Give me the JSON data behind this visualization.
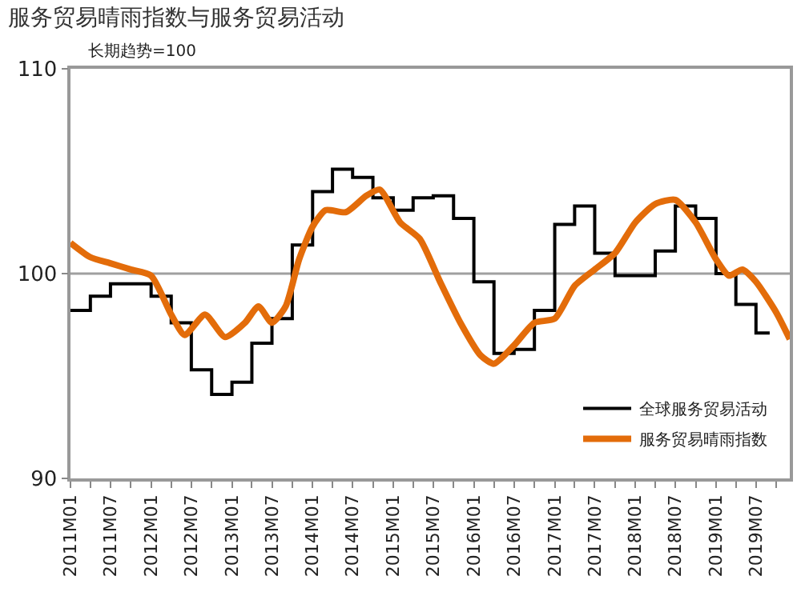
{
  "chart_data": {
    "type": "line",
    "title": "服务贸易晴雨指数与服务贸易活动",
    "subtitle": "长期趋势=100",
    "series": [
      {
        "name": "全球服务贸易活动",
        "type": "step",
        "color": "#000000",
        "x": [
          "2011-01",
          "2011-04",
          "2011-07",
          "2011-10",
          "2012-01",
          "2012-04",
          "2012-07",
          "2012-10",
          "2013-01",
          "2013-04",
          "2013-07",
          "2013-10",
          "2014-01",
          "2014-04",
          "2014-07",
          "2014-10",
          "2015-01",
          "2015-04",
          "2015-07",
          "2015-10",
          "2016-01",
          "2016-04",
          "2016-07",
          "2016-10",
          "2017-01",
          "2017-04",
          "2017-07",
          "2017-10",
          "2018-01",
          "2018-04",
          "2018-07",
          "2018-10",
          "2019-01",
          "2019-04",
          "2019-07",
          "2019-09"
        ],
        "values": [
          98.2,
          98.9,
          99.5,
          99.5,
          98.9,
          97.6,
          95.3,
          94.1,
          94.7,
          96.6,
          97.8,
          101.4,
          104.0,
          105.1,
          104.7,
          103.7,
          103.1,
          103.7,
          103.8,
          102.7,
          99.6,
          96.1,
          96.3,
          98.2,
          102.4,
          103.3,
          101.0,
          99.9,
          99.9,
          101.1,
          103.3,
          102.7,
          100.0,
          98.5,
          97.1,
          97.1
        ]
      },
      {
        "name": "服务贸易晴雨指数",
        "color": "#e36c0a",
        "x": [
          "2011-01",
          "2011-04",
          "2011-07",
          "2011-10",
          "2012-01",
          "2012-04",
          "2012-06",
          "2012-09",
          "2012-12",
          "2013-03",
          "2013-05",
          "2013-07",
          "2013-09",
          "2013-11",
          "2014-01",
          "2014-03",
          "2014-06",
          "2014-09",
          "2014-11",
          "2015-02",
          "2015-05",
          "2015-08",
          "2015-11",
          "2016-02",
          "2016-04",
          "2016-07",
          "2016-10",
          "2017-01",
          "2017-04",
          "2017-07",
          "2017-10",
          "2018-01",
          "2018-04",
          "2018-07",
          "2018-10",
          "2019-01",
          "2019-03",
          "2019-05",
          "2019-07",
          "2019-10",
          "2019-12"
        ],
        "values": [
          101.5,
          100.8,
          100.5,
          100.2,
          99.9,
          98.0,
          97.0,
          98.0,
          96.9,
          97.6,
          98.4,
          97.6,
          98.4,
          100.7,
          102.3,
          103.1,
          103.0,
          103.8,
          104.1,
          102.5,
          101.7,
          99.6,
          97.6,
          96.0,
          95.6,
          96.5,
          97.6,
          97.8,
          99.4,
          100.2,
          101.0,
          102.5,
          103.4,
          103.6,
          102.5,
          100.7,
          99.9,
          100.2,
          99.6,
          98.1,
          96.8
        ]
      }
    ],
    "xlim": [
      "2011-01",
      "2019-12"
    ],
    "xticks": [
      {
        "value": "2011-01",
        "label": "2011M01"
      },
      {
        "value": "2011-04",
        "label": null
      },
      {
        "value": "2011-07",
        "label": "2011M07"
      },
      {
        "value": "2011-10",
        "label": null
      },
      {
        "value": "2012-01",
        "label": "2012M01"
      },
      {
        "value": "2012-04",
        "label": null
      },
      {
        "value": "2012-07",
        "label": "2012M07"
      },
      {
        "value": "2012-10",
        "label": null
      },
      {
        "value": "2013-01",
        "label": "2013M01"
      },
      {
        "value": "2013-04",
        "label": null
      },
      {
        "value": "2013-07",
        "label": "2013M07"
      },
      {
        "value": "2013-10",
        "label": null
      },
      {
        "value": "2014-01",
        "label": "2014M01"
      },
      {
        "value": "2014-04",
        "label": null
      },
      {
        "value": "2014-07",
        "label": "2014M07"
      },
      {
        "value": "2014-10",
        "label": null
      },
      {
        "value": "2015-01",
        "label": "2015M01"
      },
      {
        "value": "2015-04",
        "label": null
      },
      {
        "value": "2015-07",
        "label": "2015M07"
      },
      {
        "value": "2015-10",
        "label": null
      },
      {
        "value": "2016-01",
        "label": "2016M01"
      },
      {
        "value": "2016-04",
        "label": null
      },
      {
        "value": "2016-07",
        "label": "2016M07"
      },
      {
        "value": "2016-10",
        "label": null
      },
      {
        "value": "2017-01",
        "label": "2017M01"
      },
      {
        "value": "2017-04",
        "label": null
      },
      {
        "value": "2017-07",
        "label": "2017M07"
      },
      {
        "value": "2017-10",
        "label": null
      },
      {
        "value": "2018-01",
        "label": "2018M01"
      },
      {
        "value": "2018-04",
        "label": null
      },
      {
        "value": "2018-07",
        "label": "2018M07"
      },
      {
        "value": "2018-10",
        "label": null
      },
      {
        "value": "2019-01",
        "label": "2019M01"
      },
      {
        "value": "2019-04",
        "label": null
      },
      {
        "value": "2019-07",
        "label": "2019M07"
      },
      {
        "value": "2019-10",
        "label": null
      }
    ],
    "ylim": [
      90,
      110
    ],
    "yticks": [
      90,
      100,
      110
    ],
    "ref_lines": [
      {
        "axis": "y",
        "value": 100,
        "color": "#a0a0a0"
      }
    ],
    "grid": false,
    "legend": "bottom right"
  }
}
